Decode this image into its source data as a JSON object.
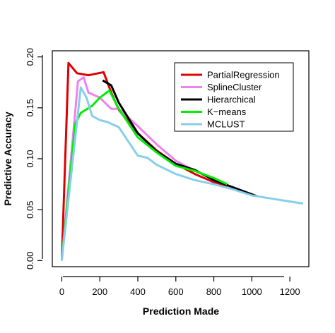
{
  "chart_data": {
    "type": "line",
    "xlabel": "Prediction Made",
    "ylabel": "Predictive Accuracy",
    "xlim": [
      -50,
      1300
    ],
    "ylim": [
      -0.006,
      0.206
    ],
    "xticks": [
      0,
      200,
      400,
      600,
      800,
      1000,
      1200
    ],
    "yticks": [
      0.0,
      0.05,
      0.1,
      0.15,
      0.2
    ],
    "xtick_labels": [
      "0",
      "200",
      "400",
      "600",
      "800",
      "1000",
      "1200"
    ],
    "ytick_labels": [
      "0.00",
      "0.05",
      "0.10",
      "0.15",
      "0.20"
    ],
    "grid": false,
    "legend_position": "top-right",
    "series": [
      {
        "name": "PartialRegression",
        "color": "#dd0000",
        "x": [
          0,
          35,
          80,
          140,
          220,
          260,
          300,
          400,
          500,
          600,
          700,
          800,
          870
        ],
        "y": [
          0.0,
          0.194,
          0.184,
          0.182,
          0.185,
          0.165,
          0.148,
          0.125,
          0.108,
          0.095,
          0.085,
          0.077,
          0.072
        ]
      },
      {
        "name": "SplineCluster",
        "color": "#ee82ee",
        "x": [
          0,
          85,
          115,
          140,
          200,
          260,
          300,
          400,
          500,
          600,
          700,
          800
        ],
        "y": [
          0.0,
          0.176,
          0.18,
          0.165,
          0.16,
          0.149,
          0.149,
          0.132,
          0.114,
          0.098,
          0.088,
          0.08
        ]
      },
      {
        "name": "Hierarchical",
        "color": "#000000",
        "x": [
          215,
          260,
          300,
          400,
          500,
          600,
          700,
          800,
          900,
          1030
        ],
        "y": [
          0.177,
          0.172,
          0.155,
          0.125,
          0.107,
          0.095,
          0.089,
          0.079,
          0.072,
          0.063
        ]
      },
      {
        "name": "K−means",
        "color": "#00ee00",
        "x": [
          0,
          70,
          100,
          160,
          200,
          250,
          300,
          400,
          500,
          600,
          700,
          800,
          870
        ],
        "y": [
          0.0,
          0.134,
          0.145,
          0.152,
          0.16,
          0.167,
          0.149,
          0.121,
          0.106,
          0.093,
          0.088,
          0.081,
          0.075
        ]
      },
      {
        "name": "MCLUST",
        "color": "#87ceeb",
        "x": [
          0,
          100,
          130,
          160,
          200,
          240,
          300,
          400,
          450,
          500,
          600,
          700,
          800,
          900,
          1000,
          1100,
          1200,
          1270
        ],
        "y": [
          0.0,
          0.17,
          0.16,
          0.142,
          0.138,
          0.136,
          0.131,
          0.103,
          0.101,
          0.094,
          0.085,
          0.079,
          0.075,
          0.07,
          0.064,
          0.061,
          0.058,
          0.056
        ]
      }
    ]
  }
}
